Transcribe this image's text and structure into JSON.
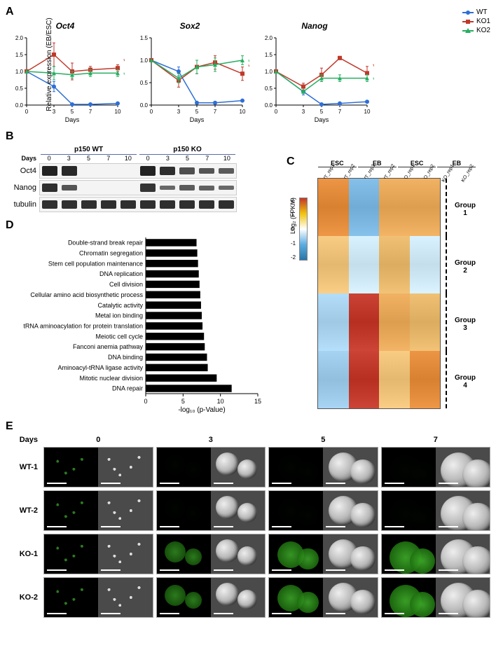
{
  "panelA": {
    "y_label": "Relative expression (EB/ESC)",
    "x_label": "Days",
    "legend": [
      {
        "label": "WT",
        "color": "#2e6fd6",
        "marker": "circle"
      },
      {
        "label": "KO1",
        "color": "#c0392b",
        "marker": "square"
      },
      {
        "label": "KO2",
        "color": "#27ae60",
        "marker": "triangle"
      }
    ],
    "days": [
      0,
      3,
      5,
      7,
      10
    ],
    "charts": [
      {
        "title": "Oct4",
        "ylim": [
          0,
          2.0
        ],
        "yticks": [
          0,
          0.5,
          1.0,
          1.5,
          2.0
        ],
        "series": {
          "WT": {
            "y": [
              1.0,
              0.55,
              0.02,
              0.02,
              0.05
            ],
            "err": [
              0,
              0.15,
              0.02,
              0.02,
              0.02
            ]
          },
          "KO1": {
            "y": [
              1.0,
              1.5,
              1.0,
              1.05,
              1.1
            ],
            "err": [
              0,
              0.35,
              0.25,
              0.1,
              0.1
            ],
            "sig": "*",
            "sig_color": "#c0392b"
          },
          "KO2": {
            "y": [
              1.0,
              0.95,
              0.9,
              0.95,
              0.95
            ],
            "err": [
              0,
              0.2,
              0.1,
              0.1,
              0.1
            ],
            "sig": "***",
            "sig_color": "#27ae60"
          }
        }
      },
      {
        "title": "Sox2",
        "ylim": [
          0,
          1.5
        ],
        "yticks": [
          0,
          0.5,
          1.0,
          1.5
        ],
        "series": {
          "WT": {
            "y": [
              1.0,
              0.75,
              0.05,
              0.05,
              0.1
            ],
            "err": [
              0,
              0.1,
              0.02,
              0.02,
              0.02
            ]
          },
          "KO1": {
            "y": [
              1.0,
              0.55,
              0.85,
              0.95,
              0.7
            ],
            "err": [
              0,
              0.15,
              0.15,
              0.15,
              0.15
            ],
            "sig": "*",
            "sig_color": "#c0392b"
          },
          "KO2": {
            "y": [
              1.0,
              0.6,
              0.85,
              0.9,
              1.0
            ],
            "err": [
              0,
              0.1,
              0.15,
              0.15,
              0.1
            ],
            "sig": "*",
            "sig_color": "#27ae60"
          }
        }
      },
      {
        "title": "Nanog",
        "ylim": [
          0,
          2.0
        ],
        "yticks": [
          0,
          0.5,
          1.0,
          1.5,
          2.0
        ],
        "series": {
          "WT": {
            "y": [
              1.0,
              0.4,
              0.02,
              0.05,
              0.1
            ],
            "err": [
              0,
              0.1,
              0.02,
              0.02,
              0.02
            ]
          },
          "KO1": {
            "y": [
              1.0,
              0.55,
              0.9,
              1.4,
              0.95
            ],
            "err": [
              0,
              0.1,
              0.2,
              0.05,
              0.2
            ],
            "sig": "*",
            "sig_color": "#c0392b"
          },
          "KO2": {
            "y": [
              1.0,
              0.4,
              0.8,
              0.8,
              0.8
            ],
            "err": [
              0,
              0.05,
              0.1,
              0.1,
              0.1
            ],
            "sig": "*",
            "sig_color": "#27ae60"
          }
        }
      }
    ]
  },
  "panelB": {
    "groups": [
      "p150 WT",
      "p150 KO"
    ],
    "days": [
      0,
      3,
      5,
      7,
      10
    ],
    "rows": [
      {
        "name": "Oct4",
        "intensity": [
          1.0,
          0.95,
          0,
          0,
          0,
          1.0,
          0.9,
          0.65,
          0.6,
          0.55
        ]
      },
      {
        "name": "Nanog",
        "intensity": [
          0.9,
          0.6,
          0,
          0,
          0,
          0.85,
          0.45,
          0.55,
          0.5,
          0.45
        ]
      },
      {
        "name": "tubulin",
        "intensity": [
          0.9,
          0.9,
          0.9,
          0.9,
          0.9,
          0.9,
          0.9,
          0.9,
          0.9,
          0.9
        ]
      }
    ],
    "days_label": "Days"
  },
  "panelC": {
    "legend_title": "Log₂ (FPKM)",
    "legend_range": [
      -2,
      2
    ],
    "top_groups": [
      "ESC",
      "EB",
      "ESC",
      "EB"
    ],
    "sub_cols": [
      "WT_rep1",
      "WT_rep2",
      "WT_rep1",
      "WT_rep2",
      "KO_rep1",
      "KO_rep2",
      "KO_rep1",
      "KO_rep2"
    ],
    "row_groups": [
      {
        "label": "Group\n1",
        "cols": [
          "#e28b3a",
          "#e28b3a",
          "#7bb6e0",
          "#7bb6e0",
          "#e7a85a",
          "#e7a85a",
          "#e7a85a",
          "#e7a85a"
        ]
      },
      {
        "label": "Group\n2",
        "cols": [
          "#efc27a",
          "#efc27a",
          "#cfe8f6",
          "#cfe8f6",
          "#e6b76a",
          "#e6b76a",
          "#cfe8f6",
          "#cfe8f6"
        ]
      },
      {
        "label": "Group\n3",
        "cols": [
          "#a9d3ee",
          "#a9d3ee",
          "#c0392b",
          "#c0392b",
          "#e7a85a",
          "#e7a85a",
          "#e6b76a",
          "#e6b76a"
        ]
      },
      {
        "label": "Group\n4",
        "cols": [
          "#9cc9e8",
          "#9cc9e8",
          "#c0392b",
          "#c0392b",
          "#efc27a",
          "#efc27a",
          "#e28b3a",
          "#e28b3a"
        ]
      }
    ]
  },
  "panelD": {
    "x_label": "-log₁₀ (p-Value)",
    "xlim": [
      0,
      15
    ],
    "xticks": [
      0,
      5,
      10,
      15
    ],
    "categories": [
      "Double-strand break repair",
      "Chromatin segregation",
      "Stem cell population maintenance",
      "DNA replication",
      "Cell division",
      "Cellular amino acid biosynthetic process",
      "Catalytic activity",
      "Metal ion binding",
      "tRNA aminoacylation for protein translation",
      "Meiotic cell cycle",
      "Fanconi anemia pathway",
      "DNA binding",
      "Aminoacyl-tRNA ligase activity",
      "Mitotic nuclear division",
      "DNA repair"
    ],
    "values": [
      6.8,
      6.9,
      7.0,
      7.1,
      7.2,
      7.3,
      7.4,
      7.5,
      7.6,
      7.8,
      7.9,
      8.2,
      8.3,
      9.5,
      11.5
    ],
    "bar_color": "#000000"
  },
  "panelE": {
    "days": [
      0,
      3,
      5,
      7
    ],
    "days_label": "Days",
    "rows": [
      "WT-1",
      "WT-2",
      "KO-1",
      "KO-2"
    ],
    "gfp": {
      "WT-1": [
        0.3,
        0.02,
        0.0,
        0.0
      ],
      "WT-2": [
        0.3,
        0.02,
        0.0,
        0.0
      ],
      "KO-1": [
        0.3,
        0.7,
        0.85,
        0.9
      ],
      "KO-2": [
        0.3,
        0.7,
        0.85,
        0.9
      ]
    }
  }
}
